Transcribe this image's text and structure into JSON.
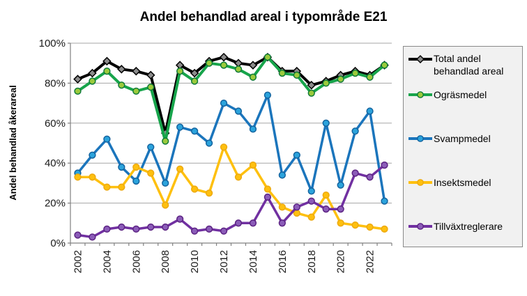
{
  "title": "Andel behandlad areal i typområde E21",
  "y_axis_title": "Andel behandlad åkerareal",
  "chart_data": {
    "type": "line",
    "x": [
      2002,
      2003,
      2004,
      2005,
      2006,
      2007,
      2008,
      2009,
      2010,
      2011,
      2012,
      2013,
      2014,
      2015,
      2016,
      2017,
      2018,
      2019,
      2020,
      2021,
      2022,
      2023
    ],
    "x_tick_labels": [
      "2002",
      "2004",
      "2006",
      "2008",
      "2010",
      "2012",
      "2014",
      "2016",
      "2018",
      "2020",
      "2022"
    ],
    "y_tick_labels": [
      "0%",
      "20%",
      "40%",
      "60%",
      "80%",
      "100%"
    ],
    "ylim": [
      0,
      100
    ],
    "grid": true,
    "legend_position": "right",
    "colors": {
      "gridline": "#a6a6a6",
      "axis": "#808080",
      "legend_background": "#f1f1f1",
      "legend_border": "#898989"
    },
    "series": [
      {
        "name": "Total andel behandlad areal",
        "color": "#000000",
        "marker": "diamond",
        "marker_fill": "#8c8c8c",
        "marker_stroke": "#000000",
        "width": 4,
        "values": [
          82,
          85,
          91,
          87,
          86,
          84,
          55,
          89,
          85,
          91,
          93,
          90,
          89,
          93,
          86,
          86,
          79,
          81,
          84,
          86,
          84,
          89
        ]
      },
      {
        "name": "Ogräsmedel",
        "color": "#17a44b",
        "marker": "circle",
        "marker_fill": "#9bca3c",
        "marker_stroke": "#0e7a38",
        "width": 4,
        "values": [
          76,
          81,
          86,
          79,
          76,
          78,
          51,
          86,
          81,
          90,
          89,
          87,
          83,
          93,
          85,
          84,
          75,
          80,
          82,
          85,
          83,
          89
        ]
      },
      {
        "name": "Svampmedel",
        "color": "#1b75bc",
        "marker": "circle",
        "marker_fill": "#2ba3dc",
        "marker_stroke": "#14639e",
        "width": 3.5,
        "values": [
          35,
          44,
          52,
          38,
          31,
          48,
          30,
          58,
          56,
          50,
          70,
          66,
          57,
          74,
          34,
          44,
          26,
          60,
          29,
          56,
          66,
          21
        ]
      },
      {
        "name": "Insektsmedel",
        "color": "#fec00f",
        "marker": "circle",
        "marker_fill": "#fec00f",
        "marker_stroke": "#eda910",
        "width": 3.5,
        "values": [
          33,
          33,
          28,
          28,
          38,
          35,
          19,
          37,
          27,
          25,
          48,
          33,
          39,
          27,
          18,
          15,
          13,
          24,
          10,
          9,
          8,
          7
        ]
      },
      {
        "name": "Tillväxtreglerare",
        "color": "#7130a1",
        "marker": "circle",
        "marker_fill": "#8b5cb8",
        "marker_stroke": "#5c2383",
        "width": 3.5,
        "values": [
          4,
          3,
          7,
          8,
          7,
          8,
          8,
          12,
          6,
          7,
          6,
          10,
          10,
          23,
          10,
          18,
          21,
          17,
          17,
          35,
          33,
          39
        ]
      }
    ]
  }
}
